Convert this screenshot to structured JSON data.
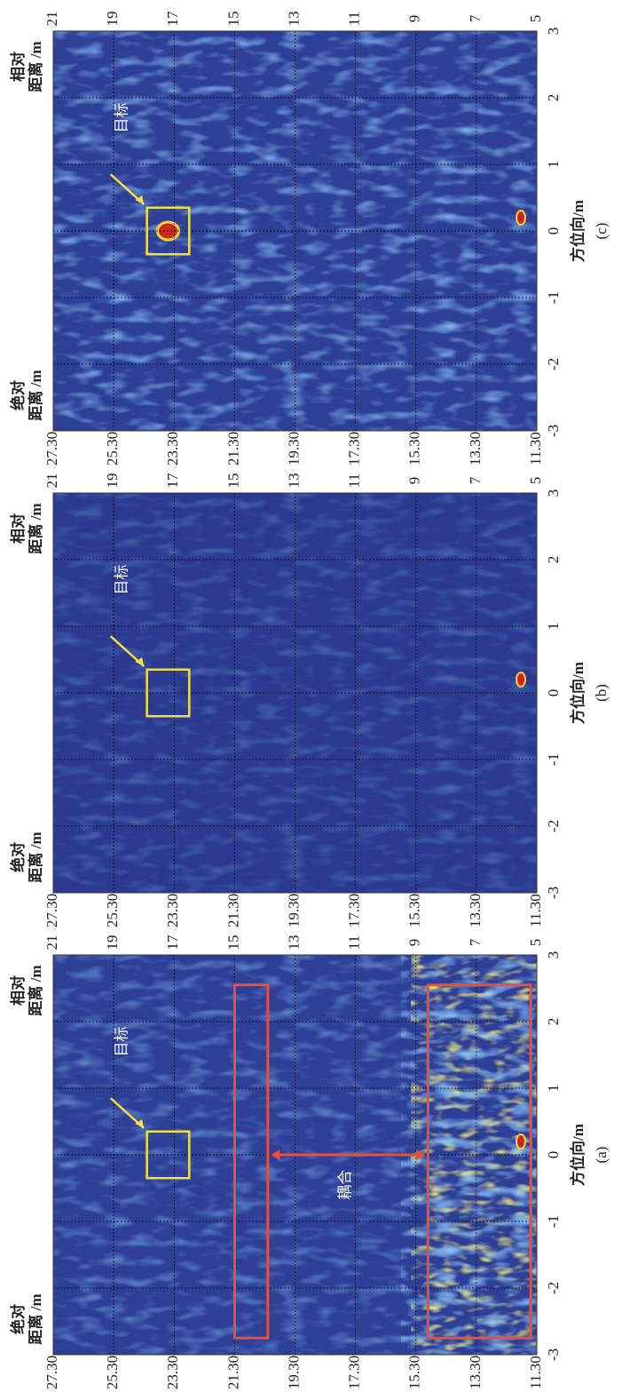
{
  "chart_data": [
    {
      "type": "heatmap",
      "caption": "(a)",
      "xlabel": "方位向/m",
      "ylabel_lines": [
        "绝对",
        "距离 /m"
      ],
      "y2label_lines": [
        "相对",
        "距离 /m"
      ],
      "xlim": [
        -3,
        3
      ],
      "xticks": [
        -3,
        -2,
        -1,
        0,
        1,
        2,
        3
      ],
      "ylim": [
        11.3,
        27.3
      ],
      "yticks": [
        {
          "value": 11.3,
          "label": "11.30"
        },
        {
          "value": 13.3,
          "label": "13.30"
        },
        {
          "value": 15.3,
          "label": "15.30"
        },
        {
          "value": 17.3,
          "label": "17.30"
        },
        {
          "value": 19.3,
          "label": "19.30"
        },
        {
          "value": 21.3,
          "label": "21.30"
        },
        {
          "value": 23.3,
          "label": "23.30"
        },
        {
          "value": 25.3,
          "label": "25.30"
        },
        {
          "value": 27.3,
          "label": "27.30"
        }
      ],
      "y2lim": [
        5,
        21
      ],
      "y2ticks": [
        5,
        7,
        9,
        11,
        13,
        15,
        17,
        19,
        21
      ],
      "grid": true,
      "target_label": "目标",
      "coupling_label": "耦合"
    },
    {
      "type": "heatmap",
      "caption": "(b)",
      "xlabel": "方位向/m",
      "ylabel_lines": [
        "绝对",
        "距离 /m"
      ],
      "y2label_lines": [
        "相对",
        "距离 /m"
      ],
      "xlim": [
        -3,
        3
      ],
      "xticks": [
        -3,
        -2,
        -1,
        0,
        1,
        2,
        3
      ],
      "ylim": [
        11.3,
        27.3
      ],
      "yticks": [
        {
          "value": 11.3,
          "label": "11.30"
        },
        {
          "value": 13.3,
          "label": "13.30"
        },
        {
          "value": 15.3,
          "label": "15.30"
        },
        {
          "value": 17.3,
          "label": "17.30"
        },
        {
          "value": 19.3,
          "label": "19.30"
        },
        {
          "value": 21.3,
          "label": "21.30"
        },
        {
          "value": 23.3,
          "label": "23.30"
        },
        {
          "value": 25.3,
          "label": "25.30"
        },
        {
          "value": 27.3,
          "label": "27.30"
        }
      ],
      "y2lim": [
        5,
        21
      ],
      "y2ticks": [
        5,
        7,
        9,
        11,
        13,
        15,
        17,
        19,
        21
      ],
      "grid": true,
      "target_label": "目标"
    },
    {
      "type": "heatmap",
      "caption": "(c)",
      "xlabel": "方位向/m",
      "ylabel_lines": [
        "绝对",
        "距离 /m"
      ],
      "y2label_lines": [
        "相对",
        "距离 /m"
      ],
      "xlim": [
        -3,
        3
      ],
      "xticks": [
        -3,
        -2,
        -1,
        0,
        1,
        2,
        3
      ],
      "ylim": [
        11.3,
        27.3
      ],
      "yticks": [
        {
          "value": 11.3,
          "label": "11.30"
        },
        {
          "value": 13.3,
          "label": "13.30"
        },
        {
          "value": 15.3,
          "label": "15.30"
        },
        {
          "value": 17.3,
          "label": "17.30"
        },
        {
          "value": 19.3,
          "label": "19.30"
        },
        {
          "value": 21.3,
          "label": "21.30"
        },
        {
          "value": 23.3,
          "label": "23.30"
        },
        {
          "value": 25.3,
          "label": "25.30"
        },
        {
          "value": 27.3,
          "label": "27.30"
        }
      ],
      "y2lim": [
        5,
        21
      ],
      "y2ticks": [
        5,
        7,
        9,
        11,
        13,
        15,
        17,
        19,
        21
      ],
      "grid": true,
      "target_label": "目标"
    }
  ]
}
